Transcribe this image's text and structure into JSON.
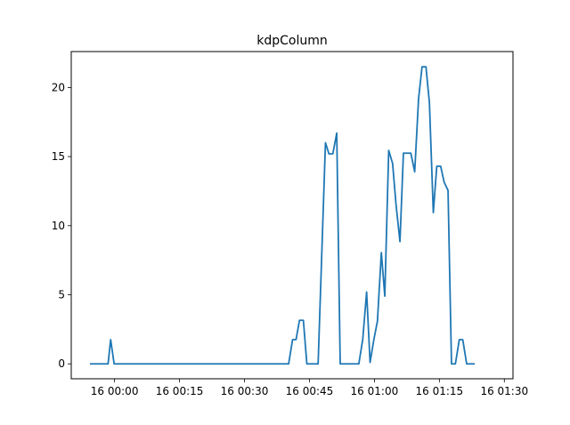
{
  "chart_data": {
    "type": "line",
    "title": "kdpColumn",
    "xlabel": "",
    "ylabel": "",
    "x_unit": "minutes",
    "xlim": [
      "16 23:50",
      "16 01:32"
    ],
    "ylim": [
      -1.08,
      22.6
    ],
    "x_ticks": [
      {
        "label": "16 00:00",
        "value": 0
      },
      {
        "label": "16 00:15",
        "value": 15
      },
      {
        "label": "16 00:30",
        "value": 30
      },
      {
        "label": "16 00:45",
        "value": 45
      },
      {
        "label": "16 01:00",
        "value": 60
      },
      {
        "label": "16 01:15",
        "value": 75
      },
      {
        "label": "16 01:30",
        "value": 90
      }
    ],
    "y_ticks": [
      0,
      5,
      10,
      15,
      20
    ],
    "grid": false,
    "series": [
      {
        "color": "#1f77b4",
        "points": [
          [
            -5.5,
            0
          ],
          [
            -1.5,
            0
          ],
          [
            -0.9,
            1.75
          ],
          [
            -0.1,
            0
          ],
          [
            40.2,
            0
          ],
          [
            41.1,
            1.75
          ],
          [
            41.9,
            1.75
          ],
          [
            42.7,
            3.15
          ],
          [
            43.6,
            3.15
          ],
          [
            44.4,
            0
          ],
          [
            47.0,
            0
          ],
          [
            48.7,
            16.0
          ],
          [
            49.5,
            15.2
          ],
          [
            50.4,
            15.2
          ],
          [
            51.3,
            16.7
          ],
          [
            52.1,
            0
          ],
          [
            56.4,
            0
          ],
          [
            57.3,
            1.75
          ],
          [
            58.2,
            5.2
          ],
          [
            59.0,
            0.1
          ],
          [
            59.9,
            1.8
          ],
          [
            60.7,
            3.1
          ],
          [
            61.6,
            8.05
          ],
          [
            62.4,
            4.9
          ],
          [
            63.3,
            15.45
          ],
          [
            64.2,
            14.5
          ],
          [
            65.0,
            11.5
          ],
          [
            65.9,
            8.85
          ],
          [
            66.7,
            15.25
          ],
          [
            68.4,
            15.25
          ],
          [
            69.3,
            13.9
          ],
          [
            70.2,
            19.2
          ],
          [
            71.0,
            21.5
          ],
          [
            71.9,
            21.5
          ],
          [
            72.7,
            18.9
          ],
          [
            73.6,
            10.95
          ],
          [
            74.4,
            14.3
          ],
          [
            75.3,
            14.3
          ],
          [
            76.1,
            13.15
          ],
          [
            77.0,
            12.55
          ],
          [
            77.8,
            0
          ],
          [
            78.7,
            0
          ],
          [
            79.6,
            1.75
          ],
          [
            80.4,
            1.75
          ],
          [
            81.3,
            0
          ],
          [
            83.0,
            0
          ]
        ]
      }
    ]
  }
}
